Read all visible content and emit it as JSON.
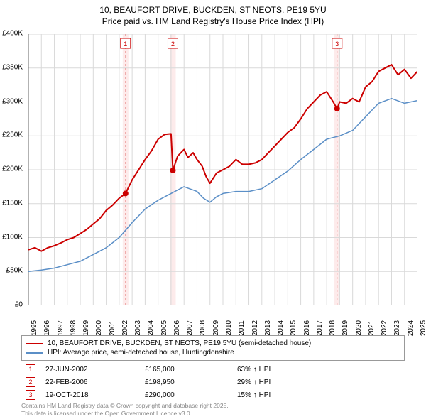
{
  "title_line1": "10, BEAUFORT DRIVE, BUCKDEN, ST NEOTS, PE19 5YU",
  "title_line2": "Price paid vs. HM Land Registry's House Price Index (HPI)",
  "chart": {
    "type": "line",
    "background_color": "#ffffff",
    "grid_color": "#d9d9d9",
    "axis_color": "#666666",
    "ylim": [
      0,
      400000
    ],
    "ytick_step": 50000,
    "y_ticks": [
      "£0",
      "£50K",
      "£100K",
      "£150K",
      "£200K",
      "£250K",
      "£300K",
      "£350K",
      "£400K"
    ],
    "xlim": [
      1995,
      2025
    ],
    "x_ticks": [
      "1995",
      "1996",
      "1997",
      "1998",
      "1999",
      "2000",
      "2001",
      "2002",
      "2003",
      "2004",
      "2005",
      "2006",
      "2007",
      "2008",
      "2009",
      "2010",
      "2011",
      "2012",
      "2013",
      "2014",
      "2015",
      "2016",
      "2017",
      "2018",
      "2019",
      "2020",
      "2021",
      "2022",
      "2023",
      "2024",
      "2025"
    ],
    "series": [
      {
        "name": "10, BEAUFORT DRIVE, BUCKDEN, ST NEOTS, PE19 5YU (semi-detached house)",
        "color": "#cc0000",
        "width": 2,
        "data": [
          [
            1995,
            82000
          ],
          [
            1995.5,
            85000
          ],
          [
            1996,
            80000
          ],
          [
            1996.5,
            85000
          ],
          [
            1997,
            88000
          ],
          [
            1997.5,
            92000
          ],
          [
            1998,
            97000
          ],
          [
            1998.5,
            100000
          ],
          [
            1999,
            106000
          ],
          [
            1999.5,
            112000
          ],
          [
            2000,
            120000
          ],
          [
            2000.5,
            128000
          ],
          [
            2001,
            140000
          ],
          [
            2001.5,
            148000
          ],
          [
            2002,
            158000
          ],
          [
            2002.49,
            165000
          ],
          [
            2003,
            185000
          ],
          [
            2003.5,
            200000
          ],
          [
            2004,
            215000
          ],
          [
            2004.5,
            228000
          ],
          [
            2005,
            245000
          ],
          [
            2005.5,
            252000
          ],
          [
            2006,
            253000
          ],
          [
            2006.14,
            198950
          ],
          [
            2006.5,
            220000
          ],
          [
            2007,
            230000
          ],
          [
            2007.3,
            218000
          ],
          [
            2007.7,
            225000
          ],
          [
            2008,
            215000
          ],
          [
            2008.4,
            205000
          ],
          [
            2008.7,
            190000
          ],
          [
            2009,
            180000
          ],
          [
            2009.5,
            195000
          ],
          [
            2010,
            200000
          ],
          [
            2010.5,
            205000
          ],
          [
            2011,
            215000
          ],
          [
            2011.5,
            208000
          ],
          [
            2012,
            208000
          ],
          [
            2012.5,
            210000
          ],
          [
            2013,
            215000
          ],
          [
            2013.5,
            225000
          ],
          [
            2014,
            235000
          ],
          [
            2014.5,
            245000
          ],
          [
            2015,
            255000
          ],
          [
            2015.5,
            262000
          ],
          [
            2016,
            275000
          ],
          [
            2016.5,
            290000
          ],
          [
            2017,
            300000
          ],
          [
            2017.5,
            310000
          ],
          [
            2018,
            315000
          ],
          [
            2018.5,
            300000
          ],
          [
            2018.8,
            290000
          ],
          [
            2019,
            300000
          ],
          [
            2019.5,
            298000
          ],
          [
            2020,
            305000
          ],
          [
            2020.5,
            300000
          ],
          [
            2021,
            322000
          ],
          [
            2021.5,
            330000
          ],
          [
            2022,
            345000
          ],
          [
            2022.5,
            350000
          ],
          [
            2023,
            355000
          ],
          [
            2023.5,
            340000
          ],
          [
            2024,
            348000
          ],
          [
            2024.5,
            335000
          ],
          [
            2025,
            345000
          ]
        ]
      },
      {
        "name": "HPI: Average price, semi-detached house, Huntingdonshire",
        "color": "#5b8fc7",
        "width": 1.5,
        "data": [
          [
            1995,
            50000
          ],
          [
            1996,
            52000
          ],
          [
            1997,
            55000
          ],
          [
            1998,
            60000
          ],
          [
            1999,
            65000
          ],
          [
            2000,
            75000
          ],
          [
            2001,
            85000
          ],
          [
            2002,
            100000
          ],
          [
            2003,
            122000
          ],
          [
            2004,
            142000
          ],
          [
            2005,
            155000
          ],
          [
            2006,
            165000
          ],
          [
            2007,
            175000
          ],
          [
            2008,
            168000
          ],
          [
            2008.5,
            158000
          ],
          [
            2009,
            152000
          ],
          [
            2009.5,
            160000
          ],
          [
            2010,
            165000
          ],
          [
            2011,
            168000
          ],
          [
            2012,
            168000
          ],
          [
            2013,
            172000
          ],
          [
            2014,
            185000
          ],
          [
            2015,
            198000
          ],
          [
            2016,
            215000
          ],
          [
            2017,
            230000
          ],
          [
            2018,
            245000
          ],
          [
            2019,
            250000
          ],
          [
            2020,
            258000
          ],
          [
            2021,
            278000
          ],
          [
            2022,
            298000
          ],
          [
            2023,
            305000
          ],
          [
            2024,
            298000
          ],
          [
            2025,
            302000
          ]
        ]
      }
    ],
    "markers": [
      {
        "num": "1",
        "x": 2002.49,
        "y": 165000,
        "color": "#cc0000"
      },
      {
        "num": "2",
        "x": 2006.14,
        "y": 198950,
        "color": "#cc0000"
      },
      {
        "num": "3",
        "x": 2018.8,
        "y": 290000,
        "color": "#cc0000"
      }
    ],
    "marker_band_color": "#fdebeb",
    "marker_line_color": "#e89090"
  },
  "legend": {
    "items": [
      {
        "color": "#cc0000",
        "label": "10, BEAUFORT DRIVE, BUCKDEN, ST NEOTS, PE19 5YU (semi-detached house)"
      },
      {
        "color": "#5b8fc7",
        "label": "HPI: Average price, semi-detached house, Huntingdonshire"
      }
    ]
  },
  "transactions": [
    {
      "num": "1",
      "date": "27-JUN-2002",
      "price": "£165,000",
      "delta": "63% ↑ HPI"
    },
    {
      "num": "2",
      "date": "22-FEB-2006",
      "price": "£198,950",
      "delta": "29% ↑ HPI"
    },
    {
      "num": "3",
      "date": "19-OCT-2018",
      "price": "£290,000",
      "delta": "15% ↑ HPI"
    }
  ],
  "footer_line1": "Contains HM Land Registry data © Crown copyright and database right 2025.",
  "footer_line2": "This data is licensed under the Open Government Licence v3.0."
}
